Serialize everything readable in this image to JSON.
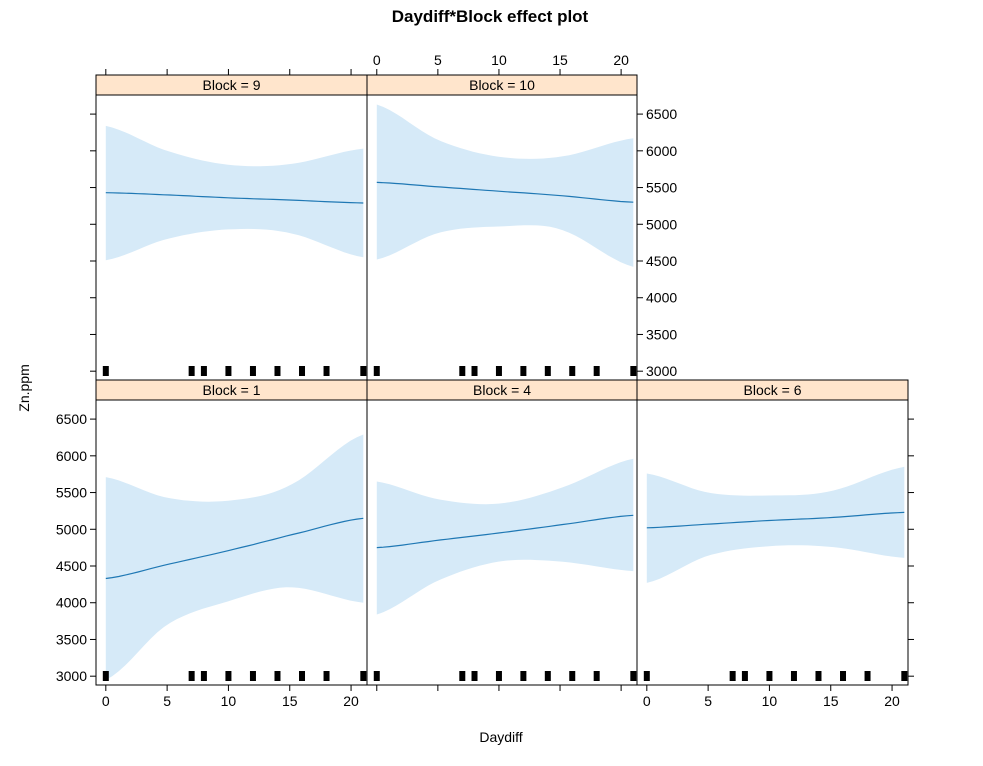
{
  "chart_data": {
    "type": "line",
    "title": "Daydiff*Block effect plot",
    "xlabel": "Daydiff",
    "ylabel": "Zn.ppm",
    "xlim": [
      -0.8,
      21.3
    ],
    "ylim": [
      2880,
      6760
    ],
    "x_ticks": [
      0,
      5,
      10,
      15,
      20
    ],
    "y_ticks": [
      3000,
      3500,
      4000,
      4500,
      5000,
      5500,
      6000,
      6500
    ],
    "layout": "lattice 3 columns x 2 rows; top row: Block 9, Block 10; bottom row: Block 1, Block 4, Block 6",
    "colors": {
      "line": "#1f78b4",
      "band": "#d6eaf8",
      "strip": "#ffe5cc",
      "rug": "#000000"
    },
    "rug_x": [
      0,
      7,
      8,
      10,
      12,
      14,
      16,
      18,
      21
    ],
    "panels": [
      {
        "strip_label": "Block = 9",
        "x": [
          0,
          5,
          10,
          15,
          21
        ],
        "fit": [
          5430,
          5400,
          5360,
          5330,
          5290
        ],
        "lower": [
          4510,
          4800,
          4930,
          4880,
          4550
        ],
        "upper": [
          6340,
          6000,
          5810,
          5820,
          6030
        ]
      },
      {
        "strip_label": "Block = 10",
        "x": [
          0,
          5,
          10,
          15,
          21
        ],
        "fit": [
          5570,
          5510,
          5450,
          5390,
          5300
        ],
        "lower": [
          4520,
          4880,
          4970,
          4930,
          4420
        ],
        "upper": [
          6630,
          6150,
          5920,
          5920,
          6170
        ]
      },
      {
        "strip_label": "Block = 1",
        "x": [
          0,
          5,
          10,
          15,
          21
        ],
        "fit": [
          4330,
          4520,
          4710,
          4920,
          5150
        ],
        "lower": [
          2950,
          3700,
          4020,
          4210,
          4000
        ],
        "upper": [
          5710,
          5430,
          5390,
          5600,
          6290
        ]
      },
      {
        "strip_label": "Block = 4",
        "x": [
          0,
          5,
          10,
          15,
          21
        ],
        "fit": [
          4750,
          4850,
          4950,
          5060,
          5190
        ],
        "lower": [
          3840,
          4300,
          4560,
          4560,
          4430
        ],
        "upper": [
          5650,
          5410,
          5350,
          5560,
          5960
        ]
      },
      {
        "strip_label": "Block = 6",
        "x": [
          0,
          5,
          10,
          15,
          21
        ],
        "fit": [
          5020,
          5070,
          5120,
          5160,
          5230
        ],
        "lower": [
          4270,
          4640,
          4770,
          4760,
          4610
        ],
        "upper": [
          5760,
          5500,
          5460,
          5520,
          5850
        ]
      }
    ]
  }
}
